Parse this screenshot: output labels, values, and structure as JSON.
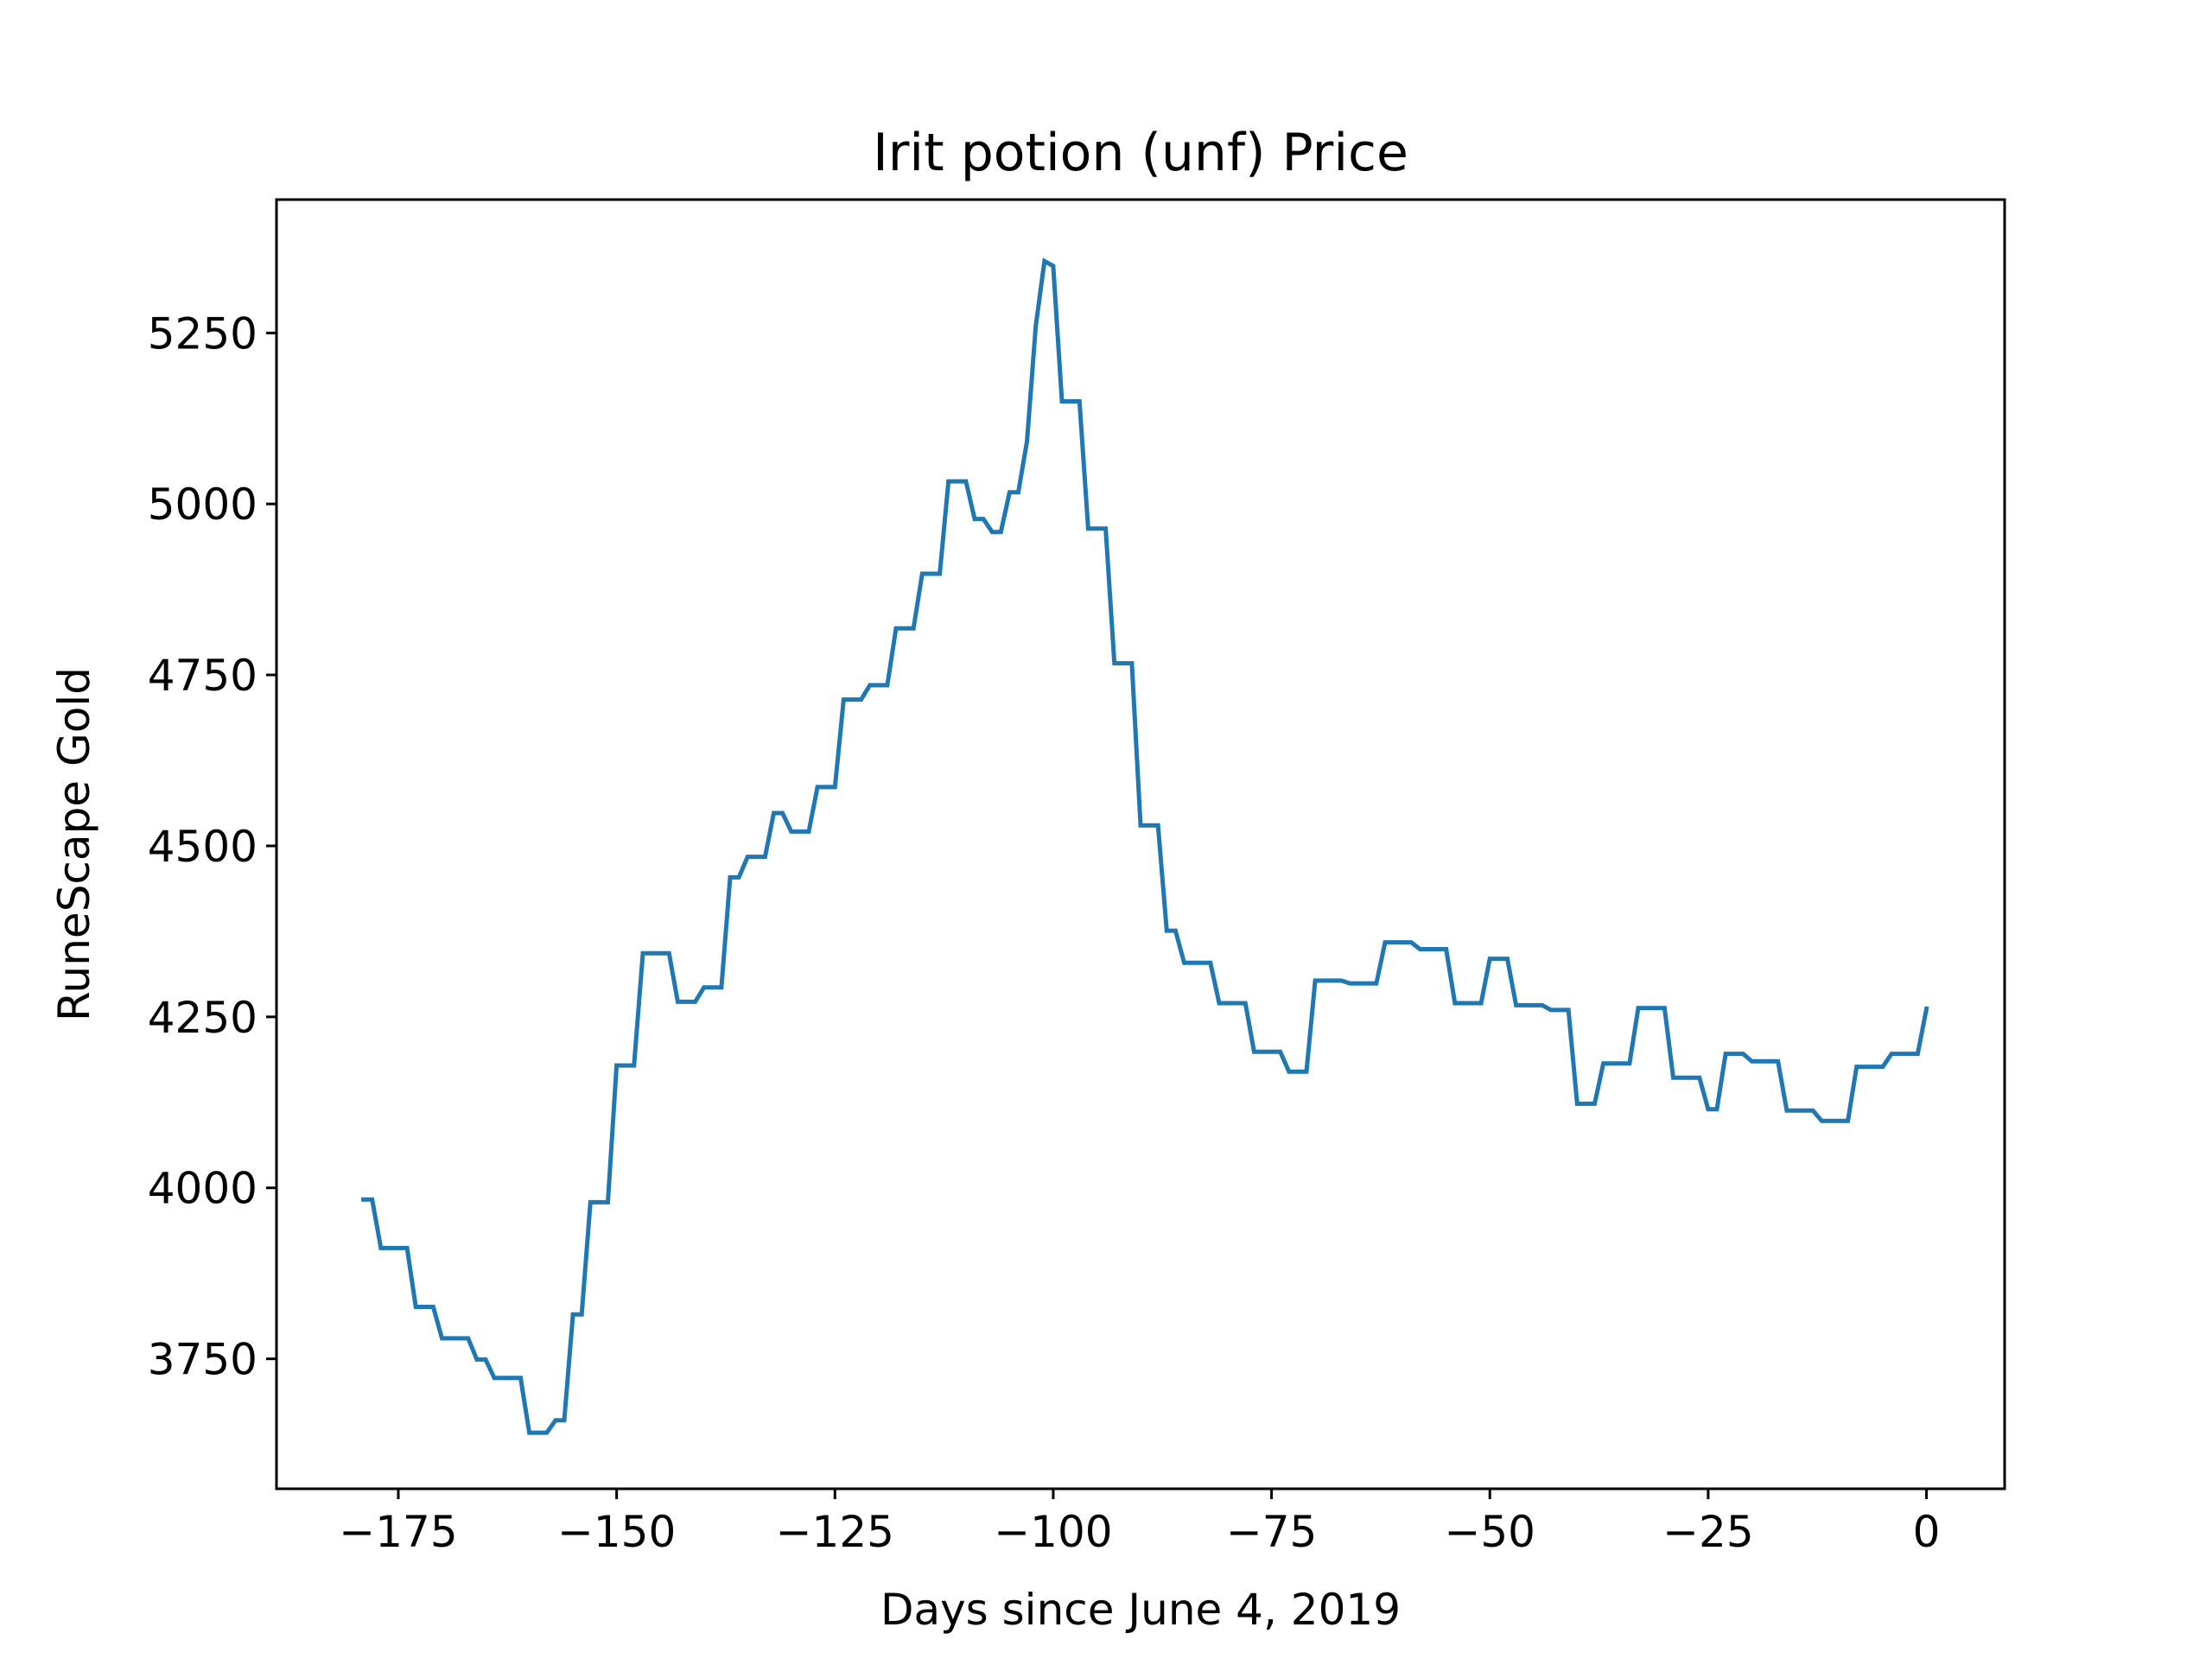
{
  "chart_data": {
    "type": "line",
    "title": "Irit potion (unf) Price",
    "xlabel": "Days since June 4, 2019",
    "ylabel": "RuneScape Gold",
    "xlim": [
      -188.95,
      8.95
    ],
    "ylim": [
      3560,
      5445
    ],
    "grid": false,
    "legend": "none",
    "colors": {
      "line": "#1f77b4",
      "axes": "#000000",
      "background": "#ffffff"
    },
    "x_ticks": [
      {
        "value": -175,
        "label": "−175"
      },
      {
        "value": -150,
        "label": "−150"
      },
      {
        "value": -125,
        "label": "−125"
      },
      {
        "value": -100,
        "label": "−100"
      },
      {
        "value": -75,
        "label": "−75"
      },
      {
        "value": -50,
        "label": "−50"
      },
      {
        "value": -25,
        "label": "−25"
      },
      {
        "value": 0,
        "label": "0"
      }
    ],
    "y_ticks": [
      {
        "value": 3750,
        "label": "3750"
      },
      {
        "value": 4000,
        "label": "4000"
      },
      {
        "value": 4250,
        "label": "4250"
      },
      {
        "value": 4500,
        "label": "4500"
      },
      {
        "value": 4750,
        "label": "4750"
      },
      {
        "value": 5000,
        "label": "5000"
      },
      {
        "value": 5250,
        "label": "5250"
      }
    ],
    "series": [
      {
        "x": [
          -179,
          -178,
          -177,
          -176,
          -175,
          -174,
          -173,
          -172,
          -171,
          -170,
          -169,
          -168,
          -167,
          -166,
          -165,
          -164,
          -163,
          -162,
          -161,
          -160,
          -159,
          -158,
          -157,
          -156,
          -155,
          -154,
          -153,
          -152,
          -151,
          -150,
          -149,
          -148,
          -147,
          -146,
          -145,
          -144,
          -143,
          -142,
          -141,
          -140,
          -139,
          -138,
          -137,
          -136,
          -135,
          -134,
          -133,
          -132,
          -131,
          -130,
          -129,
          -128,
          -127,
          -126,
          -125,
          -124,
          -123,
          -122,
          -121,
          -120,
          -119,
          -118,
          -117,
          -116,
          -115,
          -114,
          -113,
          -112,
          -111,
          -110,
          -109,
          -108,
          -107,
          -106,
          -105,
          -104,
          -103,
          -102,
          -101,
          -100,
          -99,
          -98,
          -97,
          -96,
          -95,
          -94,
          -93,
          -92,
          -91,
          -90,
          -89,
          -88,
          -87,
          -86,
          -85,
          -84,
          -83,
          -82,
          -81,
          -80,
          -79,
          -78,
          -77,
          -76,
          -75,
          -74,
          -73,
          -72,
          -71,
          -70,
          -69,
          -68,
          -67,
          -66,
          -65,
          -64,
          -63,
          -62,
          -61,
          -60,
          -59,
          -58,
          -57,
          -56,
          -55,
          -54,
          -53,
          -52,
          -51,
          -50,
          -49,
          -48,
          -47,
          -46,
          -45,
          -44,
          -43,
          -42,
          -41,
          -40,
          -39,
          -38,
          -37,
          -36,
          -35,
          -34,
          -33,
          -32,
          -31,
          -30,
          -29,
          -28,
          -27,
          -26,
          -25,
          -24,
          -23,
          -22,
          -21,
          -20,
          -19,
          -18,
          -17,
          -16,
          -15,
          -14,
          -13,
          -12,
          -11,
          -10,
          -9,
          -8,
          -7,
          -6,
          -5,
          -4,
          -3,
          -2,
          -1,
          0
        ],
        "y": [
          3983,
          3983,
          3912,
          3912,
          3912,
          3912,
          3826,
          3826,
          3826,
          3780,
          3780,
          3780,
          3780,
          3749,
          3749,
          3722,
          3722,
          3722,
          3722,
          3642,
          3642,
          3642,
          3660,
          3660,
          3815,
          3815,
          3979,
          3979,
          3979,
          4179,
          4179,
          4179,
          4343,
          4343,
          4343,
          4343,
          4272,
          4272,
          4272,
          4293,
          4293,
          4293,
          4454,
          4454,
          4484,
          4484,
          4484,
          4548,
          4548,
          4521,
          4521,
          4521,
          4586,
          4586,
          4586,
          4714,
          4714,
          4714,
          4735,
          4735,
          4735,
          4818,
          4818,
          4818,
          4898,
          4898,
          4898,
          5033,
          5033,
          5033,
          4978,
          4978,
          4959,
          4959,
          5017,
          5017,
          5092,
          5260,
          5355,
          5348,
          5150,
          5150,
          5150,
          4964,
          4964,
          4964,
          4767,
          4767,
          4767,
          4530,
          4530,
          4530,
          4376,
          4376,
          4329,
          4329,
          4329,
          4329,
          4270,
          4270,
          4270,
          4270,
          4199,
          4199,
          4199,
          4199,
          4170,
          4170,
          4170,
          4303,
          4303,
          4303,
          4303,
          4299,
          4299,
          4299,
          4299,
          4359,
          4359,
          4359,
          4359,
          4349,
          4349,
          4349,
          4349,
          4270,
          4270,
          4270,
          4270,
          4335,
          4335,
          4335,
          4267,
          4267,
          4267,
          4267,
          4260,
          4260,
          4260,
          4123,
          4123,
          4123,
          4182,
          4182,
          4182,
          4182,
          4263,
          4263,
          4263,
          4263,
          4161,
          4161,
          4161,
          4161,
          4115,
          4115,
          4196,
          4196,
          4196,
          4185,
          4185,
          4185,
          4185,
          4113,
          4113,
          4113,
          4113,
          4098,
          4098,
          4098,
          4098,
          4177,
          4177,
          4177,
          4177,
          4196,
          4196,
          4196,
          4196,
          4262
        ]
      }
    ]
  }
}
